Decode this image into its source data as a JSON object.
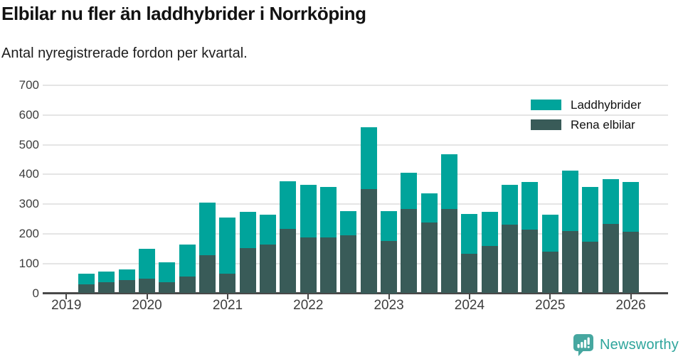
{
  "header": {
    "title": "Elbilar nu fler än laddhybrider i Norrköping",
    "subtitle": "Antal nyregistrerade fordon per kvartal."
  },
  "chart_data": {
    "type": "bar",
    "stacked": true,
    "title": "Elbilar nu fler än laddhybrider i Norrköping",
    "subtitle": "Antal nyregistrerade fordon per kvartal.",
    "categories": [
      "2019 Q2",
      "2019 Q3",
      "2019 Q4",
      "2020 Q1",
      "2020 Q2",
      "2020 Q3",
      "2020 Q4",
      "2021 Q1",
      "2021 Q2",
      "2021 Q3",
      "2021 Q4",
      "2022 Q1",
      "2022 Q2",
      "2022 Q3",
      "2022 Q4",
      "2023 Q1",
      "2023 Q2",
      "2023 Q3",
      "2023 Q4",
      "2024 Q1",
      "2024 Q2",
      "2024 Q3",
      "2024 Q4",
      "2025 Q1",
      "2025 Q2",
      "2025 Q3",
      "2025 Q4",
      "2026 Q1"
    ],
    "series": [
      {
        "name": "Laddhybrider",
        "color": "#00a49b",
        "values": [
          36,
          35,
          37,
          99,
          67,
          108,
          177,
          189,
          121,
          102,
          161,
          179,
          171,
          81,
          210,
          102,
          122,
          100,
          184,
          135,
          116,
          132,
          161,
          126,
          202,
          184,
          149,
          167
        ]
      },
      {
        "name": "Rena elbilar",
        "color": "#395b58",
        "values": [
          31,
          37,
          44,
          50,
          37,
          57,
          129,
          66,
          152,
          163,
          216,
          187,
          187,
          196,
          350,
          175,
          283,
          237,
          283,
          133,
          158,
          232,
          213,
          139,
          210,
          174,
          234,
          208
        ]
      }
    ],
    "stack_bottom_series": "Rena elbilar",
    "ylim": [
      0,
      700
    ],
    "yticks": [
      0,
      100,
      200,
      300,
      400,
      500,
      600,
      700
    ],
    "xticks": [
      "2019",
      "2020",
      "2021",
      "2022",
      "2023",
      "2024",
      "2025",
      "2026"
    ],
    "grid": true,
    "legend_position": "top-right",
    "gridline_color": "#e5e5e5",
    "axis_color": "#494949",
    "tick_label_color": "#3d3d3d"
  },
  "footer": {
    "brand": "Newsworthy",
    "brand_color": "#2ea59c",
    "logo_color": "#46a7a0"
  }
}
